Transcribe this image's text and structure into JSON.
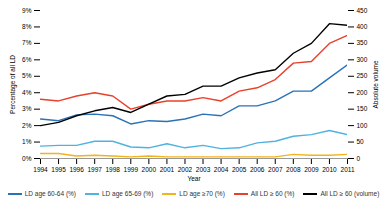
{
  "chart_data": {
    "type": "line",
    "xlabel": "Year",
    "ylabel": "Percentage of all LD",
    "y2label": "Absolute volume",
    "x": [
      1994,
      1995,
      1996,
      1997,
      1998,
      1999,
      2000,
      2001,
      2002,
      2003,
      2004,
      2005,
      2006,
      2007,
      2008,
      2009,
      2010,
      2011
    ],
    "xlim": [
      1994,
      2011
    ],
    "xticks": [
      1994,
      1995,
      1996,
      1997,
      1998,
      1999,
      2000,
      2001,
      2002,
      2003,
      2004,
      2005,
      2006,
      2007,
      2008,
      2009,
      2010,
      2011
    ],
    "ylim": [
      0,
      9
    ],
    "yticks": [
      {
        "value": 0,
        "label": "0%"
      },
      {
        "value": 1,
        "label": "1%"
      },
      {
        "value": 2,
        "label": "2%"
      },
      {
        "value": 3,
        "label": "3%"
      },
      {
        "value": 4,
        "label": "4%"
      },
      {
        "value": 5,
        "label": "5%"
      },
      {
        "value": 6,
        "label": "6%"
      },
      {
        "value": 7,
        "label": "7%"
      },
      {
        "value": 8,
        "label": "8%"
      },
      {
        "value": 9,
        "label": "9%"
      }
    ],
    "y2lim": [
      0,
      450
    ],
    "y2ticks": [
      0,
      50,
      100,
      150,
      200,
      250,
      300,
      350,
      400,
      450
    ],
    "grid": false,
    "legend": "bottom",
    "series": [
      {
        "name": "LD age 60-64 (%)",
        "color": "#2a72b8",
        "values": [
          2.4,
          2.3,
          2.65,
          2.7,
          2.6,
          2.1,
          2.3,
          2.25,
          2.4,
          2.7,
          2.6,
          3.2,
          3.2,
          3.5,
          4.1,
          4.1,
          4.9,
          5.7
        ]
      },
      {
        "name": "LD age 65-69 (%)",
        "color": "#4fb3e0",
        "values": [
          0.75,
          0.8,
          0.8,
          1.05,
          1.05,
          0.7,
          0.65,
          0.9,
          0.65,
          0.8,
          0.6,
          0.65,
          0.95,
          1.05,
          1.35,
          1.45,
          1.7,
          1.45
        ]
      },
      {
        "name": "LD age ≥70 (%)",
        "color": "#f2b31b",
        "values": [
          0.3,
          0.3,
          0.15,
          0.2,
          0.15,
          0.1,
          0.15,
          0.1,
          0.1,
          0.1,
          0.1,
          0.1,
          0.1,
          0.1,
          0.25,
          0.2,
          0.2,
          0.25
        ]
      },
      {
        "name": "All LD ≥ 60 (%)",
        "color": "#e8412b",
        "values": [
          3.6,
          3.5,
          3.8,
          4.0,
          3.8,
          3.0,
          3.3,
          3.5,
          3.5,
          3.7,
          3.5,
          4.1,
          4.3,
          4.8,
          5.8,
          5.9,
          7.0,
          7.5
        ]
      },
      {
        "name": "All LD ≥ 60 (volume)",
        "color": "#000000",
        "axis": "y2",
        "values": [
          100,
          110,
          130,
          145,
          155,
          140,
          165,
          190,
          195,
          220,
          220,
          245,
          260,
          270,
          320,
          350,
          410,
          405
        ]
      }
    ]
  }
}
